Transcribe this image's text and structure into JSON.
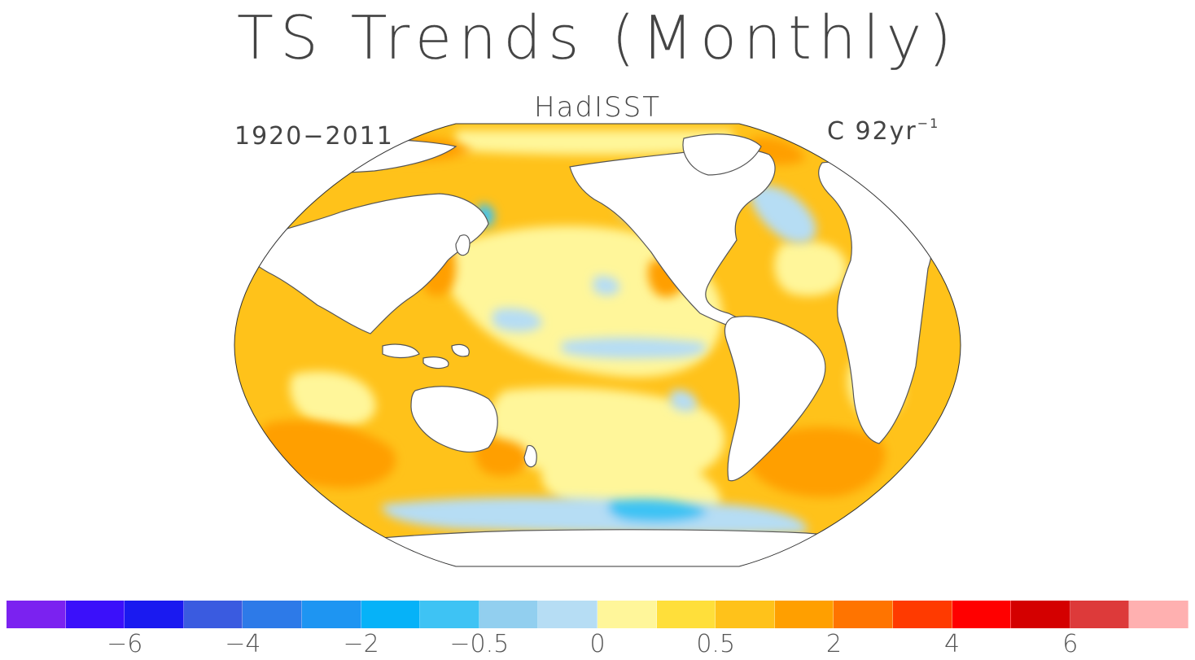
{
  "title": "TS Trends (Monthly)",
  "subtitle": "HadISST",
  "period": "1920−2011",
  "units_base": "C 92yr",
  "units_exp": "−1",
  "colorbar": {
    "colors": [
      "#7b22f0",
      "#3b10fa",
      "#1a1af0",
      "#3a5be0",
      "#2d7ae8",
      "#1e95f2",
      "#06b2f8",
      "#3ec3f4",
      "#92cfef",
      "#b6ddf4",
      "#fff69a",
      "#ffdf3a",
      "#ffc21a",
      "#ff9f00",
      "#ff7400",
      "#ff3a00",
      "#ff0000",
      "#d40000",
      "#dd3a3a",
      "#ffb0b0"
    ],
    "labels": [
      {
        "text": "−6",
        "boundary": 2
      },
      {
        "text": "−4",
        "boundary": 4
      },
      {
        "text": "−2",
        "boundary": 6
      },
      {
        "text": "−0.5",
        "boundary": 8
      },
      {
        "text": "0",
        "boundary": 10
      },
      {
        "text": "0.5",
        "boundary": 12
      },
      {
        "text": "2",
        "boundary": 14
      },
      {
        "text": "4",
        "boundary": 16
      },
      {
        "text": "6",
        "boundary": 18
      }
    ]
  }
}
